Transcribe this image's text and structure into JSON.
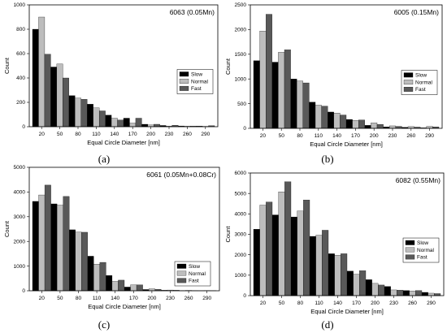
{
  "chart_data": [
    {
      "type": "bar",
      "panel_label": "(a)",
      "title": "6063 (0.05Mn)",
      "xlabel": "Equal Circle Diameter [nm]",
      "ylabel": "Count",
      "ylim": [
        0,
        1000
      ],
      "yticks": [
        "0",
        "200",
        "400",
        "600",
        "800",
        "1000"
      ],
      "xtick_labels": [
        "20",
        "50",
        "80",
        "110",
        "140",
        "170",
        "200",
        "230",
        "260",
        "290"
      ],
      "legend_position": "right-middle",
      "series": [
        {
          "name": "Slow",
          "color": "#000000",
          "values": [
            800,
            490,
            255,
            185,
            95,
            70,
            20,
            10,
            6,
            5
          ]
        },
        {
          "name": "Normal",
          "color": "#bdbdbd",
          "values": [
            900,
            515,
            235,
            155,
            70,
            30,
            15,
            5,
            4,
            3
          ]
        },
        {
          "name": "Fast",
          "color": "#595959",
          "values": [
            595,
            400,
            225,
            130,
            55,
            70,
            20,
            12,
            5,
            8
          ]
        }
      ]
    },
    {
      "type": "bar",
      "panel_label": "(b)",
      "title": "6005 (0.15Mn)",
      "xlabel": "Equal Circle Diameter [nm]",
      "ylabel": "Count",
      "ylim": [
        0,
        2500
      ],
      "yticks": [
        "0",
        "500",
        "1000",
        "1500",
        "2000",
        "2500"
      ],
      "xtick_labels": [
        "20",
        "50",
        "80",
        "110",
        "140",
        "170",
        "200",
        "230",
        "260",
        "290"
      ],
      "legend_position": "right-middle",
      "series": [
        {
          "name": "Slow",
          "color": "#000000",
          "values": [
            1370,
            1340,
            1000,
            530,
            330,
            180,
            60,
            30,
            20,
            10
          ]
        },
        {
          "name": "Normal",
          "color": "#bdbdbd",
          "values": [
            1970,
            1540,
            960,
            470,
            310,
            160,
            110,
            50,
            35,
            40
          ]
        },
        {
          "name": "Fast",
          "color": "#595959",
          "values": [
            2310,
            1590,
            920,
            450,
            270,
            170,
            80,
            40,
            25,
            30
          ]
        }
      ]
    },
    {
      "type": "bar",
      "panel_label": "(c)",
      "title": "6061 (0.05Mn+0.08Cr)",
      "xlabel": "Equal Circle Diameter [nm]",
      "ylabel": "Count",
      "ylim": [
        0,
        5000
      ],
      "yticks": [
        "0",
        "1000",
        "2000",
        "3000",
        "4000",
        "5000"
      ],
      "xtick_labels": [
        "20",
        "50",
        "80",
        "110",
        "140",
        "170",
        "200",
        "230",
        "260",
        "290"
      ],
      "legend_position": "bottom-right",
      "series": [
        {
          "name": "Slow",
          "color": "#000000",
          "values": [
            3620,
            3520,
            2470,
            1400,
            620,
            150,
            50,
            20,
            10,
            5
          ]
        },
        {
          "name": "Normal",
          "color": "#bdbdbd",
          "values": [
            3880,
            3470,
            2380,
            1080,
            380,
            240,
            80,
            30,
            15,
            10
          ]
        },
        {
          "name": "Fast",
          "color": "#595959",
          "values": [
            4280,
            3820,
            2370,
            1150,
            430,
            240,
            60,
            20,
            10,
            5
          ]
        }
      ]
    },
    {
      "type": "bar",
      "panel_label": "(d)",
      "title": "6082 (0.55Mn)",
      "xlabel": "Equal Circle Diameter [nm]",
      "ylabel": "Count",
      "ylim": [
        0,
        6000
      ],
      "yticks": [
        "0",
        "1000",
        "2000",
        "3000",
        "4000",
        "5000",
        "6000"
      ],
      "xtick_labels": [
        "20",
        "50",
        "80",
        "110",
        "140",
        "170",
        "200",
        "230",
        "260",
        "290"
      ],
      "legend_position": "right-middle",
      "series": [
        {
          "name": "Slow",
          "color": "#000000",
          "values": [
            3250,
            3950,
            3850,
            2900,
            2050,
            1200,
            780,
            450,
            250,
            160
          ]
        },
        {
          "name": "Normal",
          "color": "#bdbdbd",
          "values": [
            4430,
            5080,
            4140,
            2960,
            1980,
            1050,
            600,
            280,
            230,
            120
          ]
        },
        {
          "name": "Fast",
          "color": "#595959",
          "values": [
            4580,
            5570,
            4680,
            3200,
            2050,
            1220,
            520,
            270,
            250,
            100
          ]
        }
      ]
    }
  ]
}
